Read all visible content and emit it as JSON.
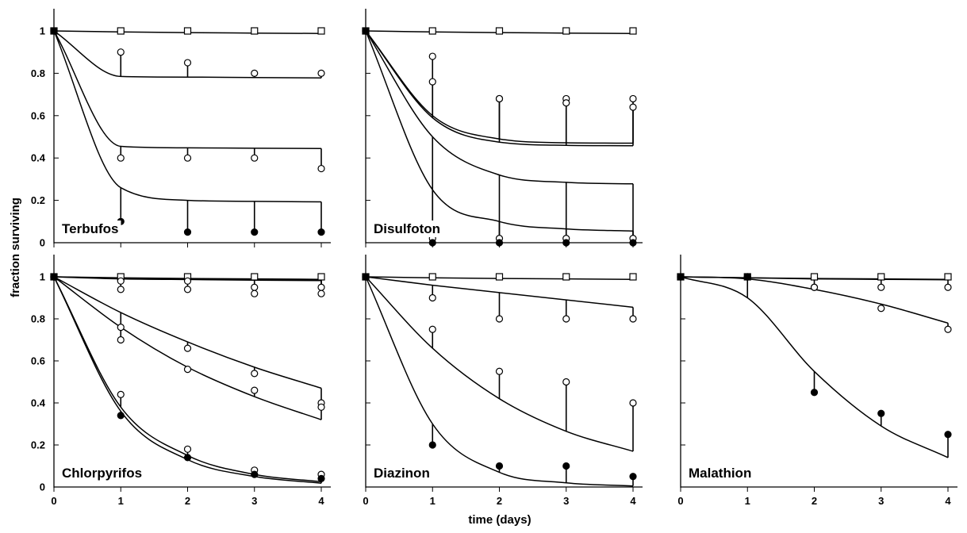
{
  "figure": {
    "ylabel": "fraction surviving",
    "xlabel": "time (days)"
  },
  "chart_data": [
    {
      "type": "scatter",
      "title": "Terbufos",
      "xlim": [
        0,
        4
      ],
      "ylim": [
        0,
        1
      ],
      "xticks": [
        0,
        1,
        2,
        3,
        4
      ],
      "yticks": [
        0,
        0.2,
        0.4,
        0.6,
        0.8,
        1
      ],
      "series": [
        {
          "marker": "square",
          "x": [
            0,
            1,
            2,
            3,
            4
          ],
          "y": [
            1,
            1,
            1,
            1,
            1
          ],
          "fit": [
            1,
            0.995,
            0.992,
            0.99,
            0.988
          ]
        },
        {
          "marker": "open-circle",
          "x": [
            0,
            1,
            2,
            3,
            4
          ],
          "y": [
            1,
            0.9,
            0.85,
            0.8,
            0.8
          ],
          "fit": [
            1,
            0.785,
            0.782,
            0.78,
            0.778
          ]
        },
        {
          "marker": "open-circle",
          "x": [
            0,
            1,
            2,
            3,
            4
          ],
          "y": [
            1,
            0.4,
            0.4,
            0.4,
            0.35
          ],
          "fit": [
            1,
            0.455,
            0.448,
            0.446,
            0.445
          ]
        },
        {
          "marker": "filled-circle",
          "x": [
            0,
            1,
            2,
            3,
            4
          ],
          "y": [
            1,
            0.1,
            0.05,
            0.05,
            0.05
          ],
          "fit": [
            1,
            0.26,
            0.2,
            0.195,
            0.193
          ]
        }
      ]
    },
    {
      "type": "scatter",
      "title": "Disulfoton",
      "xlim": [
        0,
        4
      ],
      "ylim": [
        0,
        1
      ],
      "xticks": [
        0,
        1,
        2,
        3,
        4
      ],
      "yticks": [
        0,
        0.2,
        0.4,
        0.6,
        0.8,
        1
      ],
      "series": [
        {
          "marker": "square",
          "x": [
            0,
            1,
            2,
            3,
            4
          ],
          "y": [
            1,
            1,
            1,
            1,
            1
          ],
          "fit": [
            1,
            0.995,
            0.992,
            0.99,
            0.988
          ]
        },
        {
          "marker": "open-circle",
          "x": [
            0,
            1,
            2,
            3,
            4
          ],
          "y": [
            1,
            0.88,
            0.68,
            0.68,
            0.68
          ],
          "fit": [
            1,
            0.6,
            0.49,
            0.472,
            0.47
          ]
        },
        {
          "marker": "open-circle",
          "x": [
            0,
            1,
            2,
            3,
            4
          ],
          "y": [
            1,
            0.76,
            0.68,
            0.66,
            0.64
          ],
          "fit": [
            1,
            0.59,
            0.475,
            0.46,
            0.458
          ]
        },
        {
          "marker": "open-circle",
          "x": [
            0,
            1,
            2,
            3,
            4
          ],
          "y": [
            1,
            0.02,
            0.02,
            0.02,
            0.02
          ],
          "fit": [
            1,
            0.5,
            0.32,
            0.285,
            0.278
          ]
        },
        {
          "marker": "filled-circle",
          "x": [
            0,
            1,
            2,
            3,
            4
          ],
          "y": [
            1,
            0,
            0,
            0,
            0
          ],
          "fit": [
            1,
            0.25,
            0.1,
            0.065,
            0.055
          ]
        }
      ]
    },
    {
      "type": "scatter",
      "title": "Chlorpyrifos",
      "xlim": [
        0,
        4
      ],
      "ylim": [
        0,
        1
      ],
      "xticks": [
        0,
        1,
        2,
        3,
        4
      ],
      "yticks": [
        0,
        0.2,
        0.4,
        0.6,
        0.8,
        1
      ],
      "series": [
        {
          "marker": "square",
          "x": [
            0,
            1,
            2,
            3,
            4
          ],
          "y": [
            1,
            1,
            1,
            1,
            1
          ],
          "fit": [
            1,
            0.995,
            0.992,
            0.99,
            0.988
          ]
        },
        {
          "marker": "open-circle",
          "x": [
            0,
            1,
            2,
            3,
            4
          ],
          "y": [
            1,
            0.98,
            0.98,
            0.95,
            0.95
          ],
          "fit": [
            1,
            0.993,
            0.99,
            0.987,
            0.985
          ]
        },
        {
          "marker": "open-circle",
          "x": [
            0,
            1,
            2,
            3,
            4
          ],
          "y": [
            1,
            0.94,
            0.94,
            0.92,
            0.92
          ],
          "fit": [
            1,
            0.99,
            0.987,
            0.984,
            0.982
          ]
        },
        {
          "marker": "open-circle",
          "x": [
            0,
            1,
            2,
            3,
            4
          ],
          "y": [
            1,
            0.76,
            0.66,
            0.54,
            0.4
          ],
          "fit": [
            1,
            0.83,
            0.69,
            0.57,
            0.47
          ]
        },
        {
          "marker": "open-circle",
          "x": [
            0,
            1,
            2,
            3,
            4
          ],
          "y": [
            1,
            0.7,
            0.56,
            0.46,
            0.38
          ],
          "fit": [
            1,
            0.76,
            0.57,
            0.43,
            0.32
          ]
        },
        {
          "marker": "open-circle",
          "x": [
            0,
            1,
            2,
            3,
            4
          ],
          "y": [
            1,
            0.44,
            0.18,
            0.08,
            0.06
          ],
          "fit": [
            1,
            0.38,
            0.15,
            0.06,
            0.025
          ]
        },
        {
          "marker": "filled-circle",
          "x": [
            0,
            1,
            2,
            3,
            4
          ],
          "y": [
            1,
            0.34,
            0.14,
            0.06,
            0.04
          ],
          "fit": [
            1,
            0.36,
            0.13,
            0.05,
            0.018
          ]
        }
      ]
    },
    {
      "type": "scatter",
      "title": "Diazinon",
      "xlim": [
        0,
        4
      ],
      "ylim": [
        0,
        1
      ],
      "xticks": [
        0,
        1,
        2,
        3,
        4
      ],
      "yticks": [
        0,
        0.2,
        0.4,
        0.6,
        0.8,
        1
      ],
      "series": [
        {
          "marker": "square",
          "x": [
            0,
            1,
            2,
            3,
            4
          ],
          "y": [
            1,
            1,
            1,
            1,
            1
          ],
          "fit": [
            1,
            0.995,
            0.992,
            0.99,
            0.988
          ]
        },
        {
          "marker": "open-circle",
          "x": [
            0,
            1,
            2,
            3,
            4
          ],
          "y": [
            1,
            0.9,
            0.8,
            0.8,
            0.8
          ],
          "fit": [
            1,
            0.96,
            0.925,
            0.89,
            0.855
          ]
        },
        {
          "marker": "open-circle",
          "x": [
            0,
            1,
            2,
            3,
            4
          ],
          "y": [
            1,
            0.75,
            0.55,
            0.5,
            0.4
          ],
          "fit": [
            1,
            0.66,
            0.42,
            0.265,
            0.17
          ]
        },
        {
          "marker": "filled-circle",
          "x": [
            0,
            1,
            2,
            3,
            4
          ],
          "y": [
            1,
            0.2,
            0.1,
            0.1,
            0.05
          ],
          "fit": [
            1,
            0.3,
            0.07,
            0.02,
            0.005
          ]
        }
      ]
    },
    {
      "type": "scatter",
      "title": "Malathion",
      "xlim": [
        0,
        4
      ],
      "ylim": [
        0,
        1
      ],
      "xticks": [
        0,
        1,
        2,
        3,
        4
      ],
      "yticks": [
        0,
        0.2,
        0.4,
        0.6,
        0.8,
        1
      ],
      "series": [
        {
          "marker": "square",
          "x": [
            0,
            1,
            2,
            3,
            4
          ],
          "y": [
            1,
            1,
            1,
            1,
            1
          ],
          "fit": [
            1,
            0.995,
            0.992,
            0.99,
            0.988
          ]
        },
        {
          "marker": "open-circle",
          "x": [
            0,
            1,
            2,
            3,
            4
          ],
          "y": [
            1,
            1,
            0.95,
            0.95,
            0.95
          ],
          "fit": [
            1,
            0.995,
            0.99,
            0.988,
            0.986
          ]
        },
        {
          "marker": "open-circle",
          "x": [
            0,
            1,
            2,
            3,
            4
          ],
          "y": [
            1,
            1,
            0.95,
            0.85,
            0.75
          ],
          "fit": [
            1,
            0.99,
            0.94,
            0.87,
            0.78
          ]
        },
        {
          "marker": "filled-circle",
          "x": [
            0,
            1,
            2,
            3,
            4
          ],
          "y": [
            1,
            1,
            0.45,
            0.35,
            0.25
          ],
          "fit": [
            1,
            0.9,
            0.55,
            0.29,
            0.14
          ]
        }
      ]
    }
  ]
}
